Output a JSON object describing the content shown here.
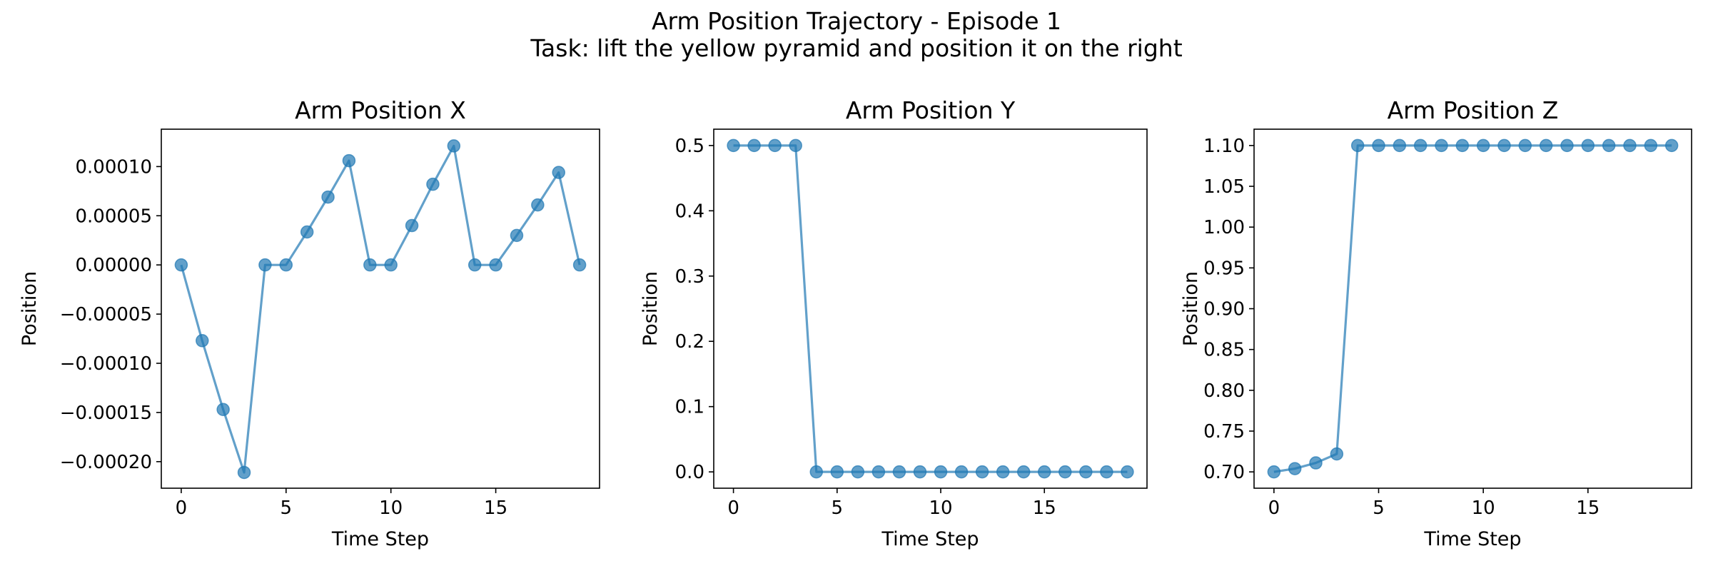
{
  "figure": {
    "title_line1": "Arm Position Trajectory - Episode 1",
    "title_line2": "Task: lift the yellow pyramid and position it on the right"
  },
  "chart_data": [
    {
      "type": "line",
      "title": "Arm Position X",
      "xlabel": "Time Step",
      "ylabel": "Position",
      "x": [
        0,
        1,
        2,
        3,
        4,
        5,
        6,
        7,
        8,
        9,
        10,
        11,
        12,
        13,
        14,
        15,
        16,
        17,
        18,
        19
      ],
      "values": [
        0,
        -7.7e-05,
        -0.000147,
        -0.000211,
        0,
        0,
        3.35e-05,
        6.9e-05,
        0.000106,
        0,
        0,
        4e-05,
        8.2e-05,
        0.000121,
        0,
        0,
        3e-05,
        6.1e-05,
        9.4e-05,
        0
      ],
      "xlim": [
        -0.95,
        19.95
      ],
      "ylim": [
        -0.000227,
        0.000138
      ],
      "xticks": [
        0,
        5,
        10,
        15
      ],
      "xtick_labels": [
        "0",
        "5",
        "10",
        "15"
      ],
      "yticks": [
        -0.0002,
        -0.00015,
        -0.0001,
        -5e-05,
        0,
        5e-05,
        0.0001
      ],
      "ytick_labels": [
        "−0.00020",
        "−0.00015",
        "−0.00010",
        "−0.00005",
        "0.00000",
        "0.00005",
        "0.00010"
      ],
      "marker": "circle",
      "color": "#1f77b4",
      "grid": false
    },
    {
      "type": "line",
      "title": "Arm Position Y",
      "xlabel": "Time Step",
      "ylabel": "Position",
      "x": [
        0,
        1,
        2,
        3,
        4,
        5,
        6,
        7,
        8,
        9,
        10,
        11,
        12,
        13,
        14,
        15,
        16,
        17,
        18,
        19
      ],
      "values": [
        0.5,
        0.5,
        0.5,
        0.5,
        0,
        0,
        0,
        0,
        0,
        0,
        0,
        0,
        0,
        0,
        0,
        0,
        0,
        0,
        0,
        0
      ],
      "xlim": [
        -0.95,
        19.95
      ],
      "ylim": [
        -0.025,
        0.525
      ],
      "xticks": [
        0,
        5,
        10,
        15
      ],
      "xtick_labels": [
        "0",
        "5",
        "10",
        "15"
      ],
      "yticks": [
        0,
        0.1,
        0.2,
        0.3,
        0.4,
        0.5
      ],
      "ytick_labels": [
        "0.0",
        "0.1",
        "0.2",
        "0.3",
        "0.4",
        "0.5"
      ],
      "marker": "circle",
      "color": "#1f77b4",
      "grid": false
    },
    {
      "type": "line",
      "title": "Arm Position Z",
      "xlabel": "Time Step",
      "ylabel": "Position",
      "x": [
        0,
        1,
        2,
        3,
        4,
        5,
        6,
        7,
        8,
        9,
        10,
        11,
        12,
        13,
        14,
        15,
        16,
        17,
        18,
        19
      ],
      "values": [
        0.7,
        0.704,
        0.711,
        0.722,
        1.1,
        1.1,
        1.1,
        1.1,
        1.1,
        1.1,
        1.1,
        1.1,
        1.1,
        1.1,
        1.1,
        1.1,
        1.1,
        1.1,
        1.1,
        1.1
      ],
      "xlim": [
        -0.95,
        19.95
      ],
      "ylim": [
        0.68,
        1.12
      ],
      "xticks": [
        0,
        5,
        10,
        15
      ],
      "xtick_labels": [
        "0",
        "5",
        "10",
        "15"
      ],
      "yticks": [
        0.7,
        0.75,
        0.8,
        0.85,
        0.9,
        0.95,
        1.0,
        1.05,
        1.1
      ],
      "ytick_labels": [
        "0.70",
        "0.75",
        "0.80",
        "0.85",
        "0.90",
        "0.95",
        "1.00",
        "1.05",
        "1.10"
      ],
      "marker": "circle",
      "color": "#1f77b4",
      "grid": false
    }
  ]
}
